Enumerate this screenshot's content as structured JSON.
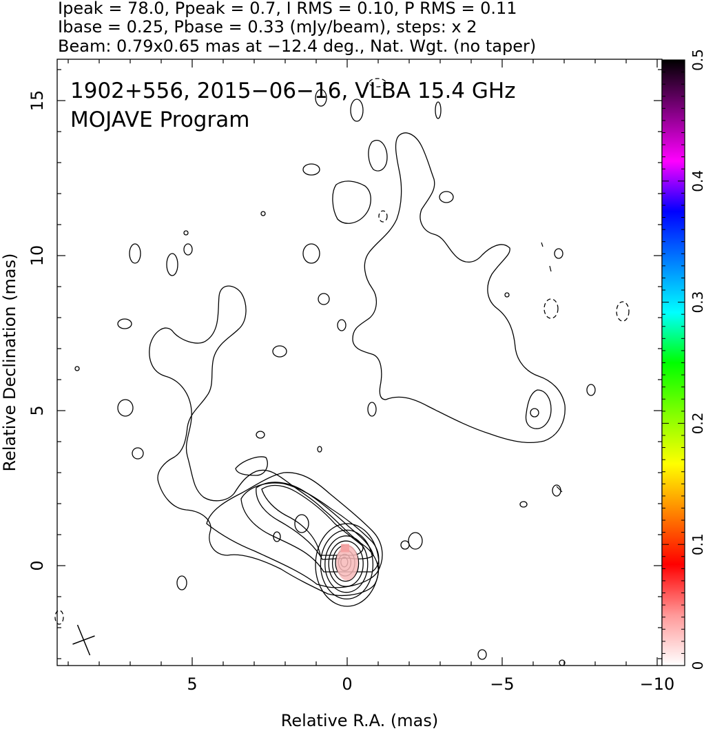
{
  "header": {
    "line1": "Ipeak = 78.0, Ppeak = 0.7, I RMS = 0.10, P RMS = 0.11",
    "line2": "Ibase = 0.25, Pbase = 0.33 (mJy/beam), steps: x 2",
    "line3": "Beam: 0.79x0.65 mas at −12.4 deg., Nat. Wgt. (no taper)"
  },
  "annotation": {
    "line1": "1902+556, 2015−06−16, VLBA 15.4 GHz",
    "line2": "MOJAVE Program"
  },
  "chart_data": {
    "type": "heatmap",
    "subtype": "radio contour map with polarization color overlay",
    "title": "1902+556, 2015−06−16, VLBA 15.4 GHz",
    "xlabel": "Relative R.A. (mas)",
    "ylabel": "Relative Declination (mas)",
    "xlim": [
      9.5,
      -10.5
    ],
    "ylim": [
      -3.2,
      16.3
    ],
    "xticks": [
      5,
      0,
      -5,
      -10
    ],
    "xtick_labels": [
      "5",
      "0",
      "−5",
      "−10"
    ],
    "yticks": [
      0,
      5,
      10,
      15
    ],
    "ytick_labels": [
      "0",
      "5",
      "10",
      "15"
    ],
    "colorbar": {
      "min": 0,
      "max": 0.5,
      "ticks": [
        0,
        0.1,
        0.2,
        0.3,
        0.4,
        0.5
      ],
      "tick_labels": [
        "0",
        "0.1",
        "0.2",
        "0.3",
        "0.4",
        "0.5"
      ],
      "colors": [
        "#ffffff",
        "#ff9999",
        "#ff0000",
        "#ff8000",
        "#ffff00",
        "#80ff00",
        "#00ff00",
        "#00ffff",
        "#0080ff",
        "#0000ff",
        "#ff00ff",
        "#800080",
        "#000000"
      ]
    },
    "core": {
      "x": 0,
      "y": 0,
      "peak_mJy_per_beam": 78.0
    },
    "beam": {
      "major_mas": 0.79,
      "minor_mas": 0.65,
      "pa_deg": -12.4,
      "center": [
        8.5,
        -2.4
      ]
    },
    "contour_base_mJy": 0.25,
    "contour_step_factor": 2,
    "polarized_emission": {
      "x": 0,
      "y": 0.1,
      "fraction_level": 0.05
    }
  }
}
